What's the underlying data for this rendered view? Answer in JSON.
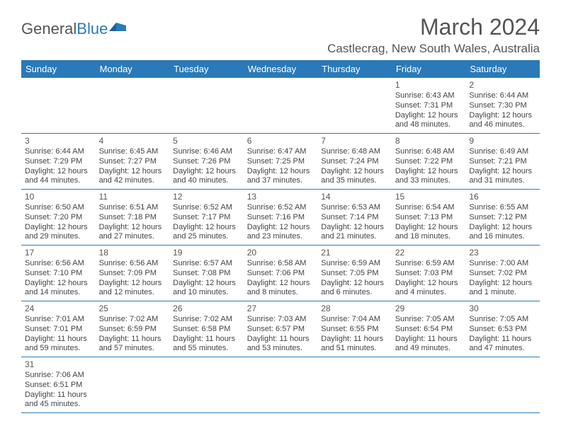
{
  "logo": {
    "general": "General",
    "blue": "Blue"
  },
  "header": {
    "month_year": "March 2024",
    "location": "Castlecrag, New South Wales, Australia"
  },
  "colors": {
    "header_bg": "#2a7ab9",
    "header_text": "#ffffff",
    "cell_border": "#2a7ab9",
    "text": "#444444"
  },
  "daynames": [
    "Sunday",
    "Monday",
    "Tuesday",
    "Wednesday",
    "Thursday",
    "Friday",
    "Saturday"
  ],
  "weeks": [
    [
      null,
      null,
      null,
      null,
      null,
      {
        "d": "1",
        "sr": "Sunrise: 6:43 AM",
        "ss": "Sunset: 7:31 PM",
        "dl1": "Daylight: 12 hours",
        "dl2": "and 48 minutes."
      },
      {
        "d": "2",
        "sr": "Sunrise: 6:44 AM",
        "ss": "Sunset: 7:30 PM",
        "dl1": "Daylight: 12 hours",
        "dl2": "and 46 minutes."
      }
    ],
    [
      {
        "d": "3",
        "sr": "Sunrise: 6:44 AM",
        "ss": "Sunset: 7:29 PM",
        "dl1": "Daylight: 12 hours",
        "dl2": "and 44 minutes."
      },
      {
        "d": "4",
        "sr": "Sunrise: 6:45 AM",
        "ss": "Sunset: 7:27 PM",
        "dl1": "Daylight: 12 hours",
        "dl2": "and 42 minutes."
      },
      {
        "d": "5",
        "sr": "Sunrise: 6:46 AM",
        "ss": "Sunset: 7:26 PM",
        "dl1": "Daylight: 12 hours",
        "dl2": "and 40 minutes."
      },
      {
        "d": "6",
        "sr": "Sunrise: 6:47 AM",
        "ss": "Sunset: 7:25 PM",
        "dl1": "Daylight: 12 hours",
        "dl2": "and 37 minutes."
      },
      {
        "d": "7",
        "sr": "Sunrise: 6:48 AM",
        "ss": "Sunset: 7:24 PM",
        "dl1": "Daylight: 12 hours",
        "dl2": "and 35 minutes."
      },
      {
        "d": "8",
        "sr": "Sunrise: 6:48 AM",
        "ss": "Sunset: 7:22 PM",
        "dl1": "Daylight: 12 hours",
        "dl2": "and 33 minutes."
      },
      {
        "d": "9",
        "sr": "Sunrise: 6:49 AM",
        "ss": "Sunset: 7:21 PM",
        "dl1": "Daylight: 12 hours",
        "dl2": "and 31 minutes."
      }
    ],
    [
      {
        "d": "10",
        "sr": "Sunrise: 6:50 AM",
        "ss": "Sunset: 7:20 PM",
        "dl1": "Daylight: 12 hours",
        "dl2": "and 29 minutes."
      },
      {
        "d": "11",
        "sr": "Sunrise: 6:51 AM",
        "ss": "Sunset: 7:18 PM",
        "dl1": "Daylight: 12 hours",
        "dl2": "and 27 minutes."
      },
      {
        "d": "12",
        "sr": "Sunrise: 6:52 AM",
        "ss": "Sunset: 7:17 PM",
        "dl1": "Daylight: 12 hours",
        "dl2": "and 25 minutes."
      },
      {
        "d": "13",
        "sr": "Sunrise: 6:52 AM",
        "ss": "Sunset: 7:16 PM",
        "dl1": "Daylight: 12 hours",
        "dl2": "and 23 minutes."
      },
      {
        "d": "14",
        "sr": "Sunrise: 6:53 AM",
        "ss": "Sunset: 7:14 PM",
        "dl1": "Daylight: 12 hours",
        "dl2": "and 21 minutes."
      },
      {
        "d": "15",
        "sr": "Sunrise: 6:54 AM",
        "ss": "Sunset: 7:13 PM",
        "dl1": "Daylight: 12 hours",
        "dl2": "and 18 minutes."
      },
      {
        "d": "16",
        "sr": "Sunrise: 6:55 AM",
        "ss": "Sunset: 7:12 PM",
        "dl1": "Daylight: 12 hours",
        "dl2": "and 16 minutes."
      }
    ],
    [
      {
        "d": "17",
        "sr": "Sunrise: 6:56 AM",
        "ss": "Sunset: 7:10 PM",
        "dl1": "Daylight: 12 hours",
        "dl2": "and 14 minutes."
      },
      {
        "d": "18",
        "sr": "Sunrise: 6:56 AM",
        "ss": "Sunset: 7:09 PM",
        "dl1": "Daylight: 12 hours",
        "dl2": "and 12 minutes."
      },
      {
        "d": "19",
        "sr": "Sunrise: 6:57 AM",
        "ss": "Sunset: 7:08 PM",
        "dl1": "Daylight: 12 hours",
        "dl2": "and 10 minutes."
      },
      {
        "d": "20",
        "sr": "Sunrise: 6:58 AM",
        "ss": "Sunset: 7:06 PM",
        "dl1": "Daylight: 12 hours",
        "dl2": "and 8 minutes."
      },
      {
        "d": "21",
        "sr": "Sunrise: 6:59 AM",
        "ss": "Sunset: 7:05 PM",
        "dl1": "Daylight: 12 hours",
        "dl2": "and 6 minutes."
      },
      {
        "d": "22",
        "sr": "Sunrise: 6:59 AM",
        "ss": "Sunset: 7:03 PM",
        "dl1": "Daylight: 12 hours",
        "dl2": "and 4 minutes."
      },
      {
        "d": "23",
        "sr": "Sunrise: 7:00 AM",
        "ss": "Sunset: 7:02 PM",
        "dl1": "Daylight: 12 hours",
        "dl2": "and 1 minute."
      }
    ],
    [
      {
        "d": "24",
        "sr": "Sunrise: 7:01 AM",
        "ss": "Sunset: 7:01 PM",
        "dl1": "Daylight: 11 hours",
        "dl2": "and 59 minutes."
      },
      {
        "d": "25",
        "sr": "Sunrise: 7:02 AM",
        "ss": "Sunset: 6:59 PM",
        "dl1": "Daylight: 11 hours",
        "dl2": "and 57 minutes."
      },
      {
        "d": "26",
        "sr": "Sunrise: 7:02 AM",
        "ss": "Sunset: 6:58 PM",
        "dl1": "Daylight: 11 hours",
        "dl2": "and 55 minutes."
      },
      {
        "d": "27",
        "sr": "Sunrise: 7:03 AM",
        "ss": "Sunset: 6:57 PM",
        "dl1": "Daylight: 11 hours",
        "dl2": "and 53 minutes."
      },
      {
        "d": "28",
        "sr": "Sunrise: 7:04 AM",
        "ss": "Sunset: 6:55 PM",
        "dl1": "Daylight: 11 hours",
        "dl2": "and 51 minutes."
      },
      {
        "d": "29",
        "sr": "Sunrise: 7:05 AM",
        "ss": "Sunset: 6:54 PM",
        "dl1": "Daylight: 11 hours",
        "dl2": "and 49 minutes."
      },
      {
        "d": "30",
        "sr": "Sunrise: 7:05 AM",
        "ss": "Sunset: 6:53 PM",
        "dl1": "Daylight: 11 hours",
        "dl2": "and 47 minutes."
      }
    ],
    [
      {
        "d": "31",
        "sr": "Sunrise: 7:06 AM",
        "ss": "Sunset: 6:51 PM",
        "dl1": "Daylight: 11 hours",
        "dl2": "and 45 minutes."
      },
      null,
      null,
      null,
      null,
      null,
      null
    ]
  ]
}
